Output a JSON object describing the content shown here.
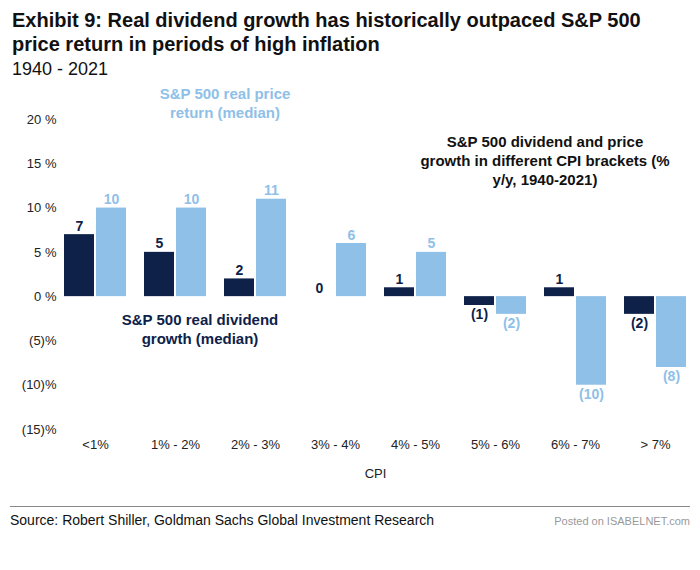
{
  "chart_data": {
    "type": "bar",
    "title": "Exhibit 9: Real dividend growth has historically outpaced S&P 500 price return in periods of high inflation",
    "subtitle": "1940 - 2021",
    "x_label": "CPI",
    "source": "Source: Robert Shiller, Goldman Sachs Global Investment Research",
    "annotations": [
      "S&P 500 dividend and price growth in different CPI brackets (% y/y, 1940-2021)",
      "Posted on ISABELNET.com"
    ],
    "categories": [
      "<1%",
      "1% - 2%",
      "2% - 3%",
      "3% - 4%",
      "4% - 5%",
      "5% - 6%",
      "6% - 7%",
      "> 7%"
    ],
    "series": [
      {
        "name": "S&P 500 real dividend growth (median)",
        "color": "#0d2149",
        "values": [
          7,
          5,
          2,
          0,
          1,
          -1,
          1,
          -2
        ],
        "value_labels": [
          "7",
          "5",
          "2",
          "0",
          "1",
          "(1)",
          "1",
          "(2)"
        ]
      },
      {
        "name": "S&P 500 real price return (median)",
        "color": "#8ec0e8",
        "values": [
          10,
          10,
          11,
          6,
          5,
          -2,
          -10,
          -8
        ],
        "value_labels": [
          "10",
          "10",
          "11",
          "6",
          "5",
          "(2)",
          "(10)",
          "(8)"
        ]
      }
    ],
    "ylim": [
      -15,
      20
    ],
    "yticks": [
      {
        "value": -15,
        "label": "(15)%"
      },
      {
        "value": -10,
        "label": "(10)%"
      },
      {
        "value": -5,
        "label": "(5)%"
      },
      {
        "value": 0,
        "label": "0 %"
      },
      {
        "value": 5,
        "label": "5 %"
      },
      {
        "value": 10,
        "label": "10 %"
      },
      {
        "value": 15,
        "label": "15 %"
      },
      {
        "value": 20,
        "label": "20 %"
      }
    ],
    "grid": false,
    "data_labels": true
  }
}
